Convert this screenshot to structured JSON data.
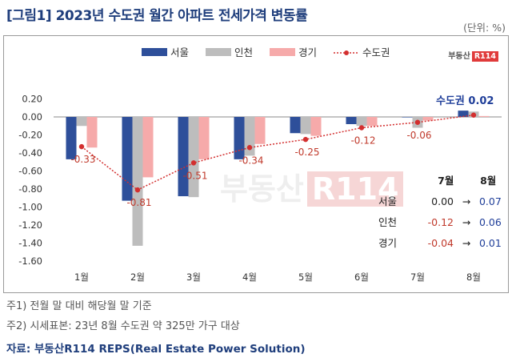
{
  "title": "[그림1] 2023년 수도권 월간 아파트 전세가격 변동률",
  "unit": "(단위: %)",
  "logo": {
    "text": "부동산",
    "badge": "R114"
  },
  "watermark": {
    "text": "부동산",
    "badge": "R114"
  },
  "callout": "수도권 0.02",
  "mini_table": {
    "col_a": "7월",
    "col_b": "8월",
    "arrow": "→",
    "rows": [
      {
        "label": "서울",
        "a": "0.00",
        "b": "0.07"
      },
      {
        "label": "인천",
        "a": "-0.12",
        "b": "0.06"
      },
      {
        "label": "경기",
        "a": "-0.04",
        "b": "0.01"
      }
    ]
  },
  "notes": [
    "주1) 전월 말 대비 해당월 말 기준",
    "주2) 시세표본: 23년 8월 수도권 약 325만 가구 대상"
  ],
  "source": "자료: 부동산R114 REPS(Real Estate Power Solution)",
  "chart_data": {
    "type": "bar",
    "categories": [
      "1월",
      "2월",
      "3월",
      "4월",
      "5월",
      "6월",
      "7월",
      "8월"
    ],
    "series": [
      {
        "name": "서울",
        "type": "bar",
        "color": "#2e4f9a",
        "values": [
          -0.47,
          -0.93,
          -0.88,
          -0.47,
          -0.18,
          -0.08,
          0.0,
          0.07
        ]
      },
      {
        "name": "인천",
        "type": "bar",
        "color": "#bdbdbd",
        "values": [
          -0.1,
          -1.43,
          -0.89,
          -0.43,
          -0.19,
          -0.1,
          -0.12,
          0.06
        ]
      },
      {
        "name": "경기",
        "type": "bar",
        "color": "#f6aaaa",
        "values": [
          -0.34,
          -0.67,
          -0.47,
          -0.3,
          -0.21,
          -0.1,
          -0.04,
          0.01
        ]
      },
      {
        "name": "수도권",
        "type": "line",
        "color": "#d32f2f",
        "values": [
          -0.33,
          -0.81,
          -0.51,
          -0.34,
          -0.25,
          -0.12,
          -0.06,
          0.02
        ],
        "labels": [
          "-0.33",
          "-0.81",
          "-0.51",
          "-0.34",
          "-0.25",
          "-0.12",
          "-0.06",
          ""
        ]
      }
    ],
    "yticks": [
      "0.20",
      "0.00",
      "-0.20",
      "-0.40",
      "-0.60",
      "-0.80",
      "-1.00",
      "-1.20",
      "-1.40",
      "-1.60"
    ],
    "ylim": [
      -1.6,
      0.2
    ],
    "legend_position": "top"
  }
}
